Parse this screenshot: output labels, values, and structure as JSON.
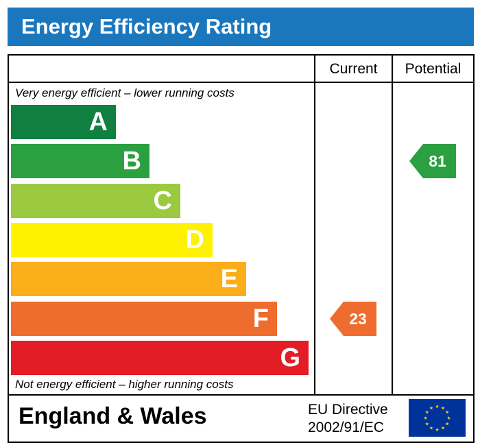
{
  "header": {
    "title": "Energy Efficiency Rating"
  },
  "columns": {
    "current": "Current",
    "potential": "Potential"
  },
  "captions": {
    "top": "Very energy efficient – lower running costs",
    "bottom": "Not energy efficient – higher running costs"
  },
  "footer": {
    "region": "England & Wales",
    "directive_line1": "EU Directive",
    "directive_line2": "2002/91/EC"
  },
  "chart_data": {
    "type": "bar",
    "categories": [
      "A",
      "B",
      "C",
      "D",
      "E",
      "F",
      "G"
    ],
    "bands": [
      {
        "letter": "A",
        "color": "#0f8040"
      },
      {
        "letter": "B",
        "color": "#2ba040"
      },
      {
        "letter": "C",
        "color": "#9bc93f"
      },
      {
        "letter": "D",
        "color": "#fff200"
      },
      {
        "letter": "E",
        "color": "#fbad1a"
      },
      {
        "letter": "F",
        "color": "#ee6c2e"
      },
      {
        "letter": "G",
        "color": "#e21d26"
      }
    ],
    "current": {
      "value": "23",
      "band": "F",
      "color": "#ee6c2e"
    },
    "potential": {
      "value": "81",
      "band": "B",
      "color": "#2ba040"
    },
    "header_color": "#1a77bd"
  }
}
